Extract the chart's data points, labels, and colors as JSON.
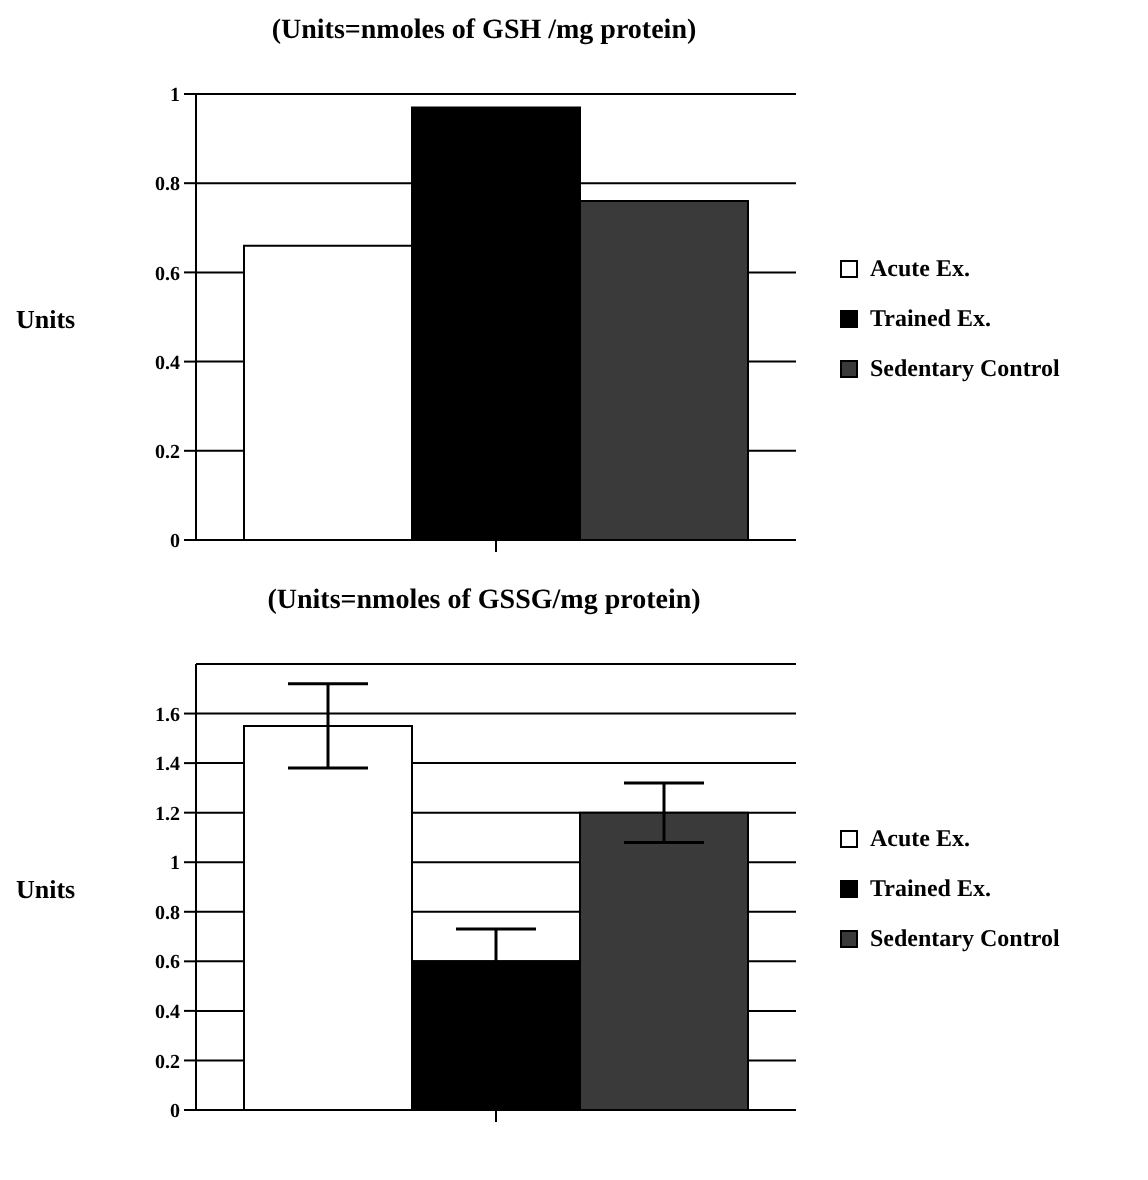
{
  "chart_data": [
    {
      "type": "bar",
      "title": "(Units=nmoles of GSH /mg protein)",
      "ylabel": "Units",
      "categories": [
        null
      ],
      "series": [
        {
          "name": "Acute Ex.",
          "color": "#ffffff",
          "values": [
            0.66
          ]
        },
        {
          "name": "Trained Ex.",
          "color": "#000000",
          "values": [
            0.97
          ]
        },
        {
          "name": "Sedentary Control",
          "color": "#3a3a3a",
          "values": [
            0.76
          ]
        }
      ],
      "ylim": [
        0,
        1
      ],
      "yticks": [
        0,
        0.2,
        0.4,
        0.6,
        0.8,
        1
      ],
      "grid": "y",
      "legend": "right"
    },
    {
      "type": "bar",
      "title": "(Units=nmoles of GSSG/mg protein)",
      "ylabel": "Units",
      "categories": [
        null
      ],
      "series": [
        {
          "name": "Acute Ex.",
          "color": "#ffffff",
          "values": [
            1.55
          ],
          "errors": [
            0.17
          ]
        },
        {
          "name": "Trained Ex.",
          "color": "#000000",
          "values": [
            0.6
          ],
          "errors": [
            0.13
          ]
        },
        {
          "name": "Sedentary Control",
          "color": "#3a3a3a",
          "values": [
            1.2
          ],
          "errors": [
            0.12
          ]
        }
      ],
      "ylim": [
        0,
        1.8
      ],
      "yticks": [
        0,
        0.2,
        0.4,
        0.6,
        0.8,
        1,
        1.2,
        1.4,
        1.6
      ],
      "grid": "y",
      "legend": "right"
    }
  ]
}
